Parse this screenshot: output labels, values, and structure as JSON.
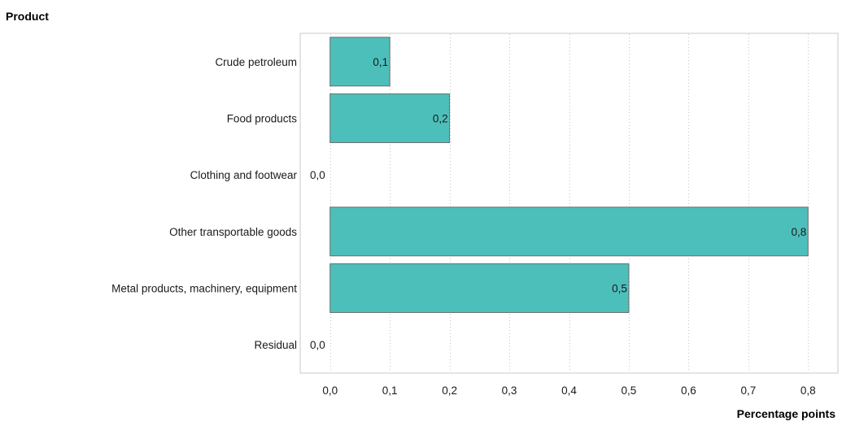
{
  "chart_data": {
    "type": "bar",
    "orientation": "horizontal",
    "ylabel": "Product",
    "xlabel": "Percentage points",
    "categories": [
      "Crude petroleum",
      "Food products",
      "Clothing and footwear",
      "Other transportable goods",
      "Metal products, machinery, equipment",
      "Residual"
    ],
    "values": [
      0.1,
      0.2,
      0.0,
      0.8,
      0.5,
      0.0
    ],
    "value_labels": [
      "0,1",
      "0,2",
      "0,0",
      "0,8",
      "0,5",
      "0,0"
    ],
    "xlim": [
      -0.05,
      0.85
    ],
    "xticks": [
      0.0,
      0.1,
      0.2,
      0.3,
      0.4,
      0.5,
      0.6,
      0.7,
      0.8
    ],
    "xtick_labels": [
      "0,0",
      "0,1",
      "0,2",
      "0,3",
      "0,4",
      "0,5",
      "0,6",
      "0,7",
      "0,8"
    ],
    "grid": "vertical-dotted",
    "legend": "none",
    "colors": {
      "bar_fill": "#4dbfbb",
      "bar_stroke": "#6b6b6b",
      "grid": "#c4c4c4",
      "frame": "#c8c8c8"
    }
  }
}
